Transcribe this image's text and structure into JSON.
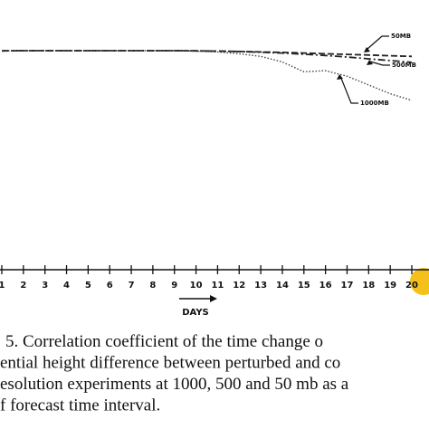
{
  "chart_data": {
    "type": "line",
    "x": [
      1,
      2,
      3,
      4,
      5,
      6,
      7,
      8,
      9,
      10,
      11,
      12,
      13,
      14,
      15,
      16,
      17,
      18,
      19,
      20
    ],
    "series": [
      {
        "name": "50MB",
        "color": "#222222",
        "style": "dashed",
        "values": [
          0.995,
          0.996,
          0.996,
          0.996,
          0.996,
          0.996,
          0.996,
          0.996,
          0.996,
          0.995,
          0.994,
          0.992,
          0.99,
          0.988,
          0.985,
          0.982,
          0.979,
          0.976,
          0.973,
          0.97
        ]
      },
      {
        "name": "500MB",
        "color": "#222222",
        "style": "dashdot",
        "values": [
          0.995,
          0.996,
          0.996,
          0.996,
          0.996,
          0.996,
          0.996,
          0.996,
          0.996,
          0.995,
          0.994,
          0.992,
          0.989,
          0.985,
          0.98,
          0.974,
          0.967,
          0.959,
          0.951,
          0.943
        ]
      },
      {
        "name": "1000MB",
        "color": "#444444",
        "style": "dotted",
        "values": [
          0.995,
          0.996,
          0.996,
          0.996,
          0.996,
          0.996,
          0.996,
          0.996,
          0.996,
          0.994,
          0.99,
          0.982,
          0.97,
          0.945,
          0.9,
          0.905,
          0.88,
          0.84,
          0.8,
          0.77
        ]
      }
    ],
    "xlim": [
      1,
      20
    ],
    "xticks": [
      1,
      2,
      3,
      4,
      5,
      6,
      7,
      8,
      9,
      10,
      11,
      12,
      13,
      14,
      15,
      16,
      17,
      18,
      19,
      20
    ],
    "ylim": [
      0,
      1
    ],
    "xlabel": "DAYS",
    "caption": [
      "5.  Correlation coefficient of the time change o",
      "ential height difference between perturbed and co",
      "esolution experiments at 1000, 500 and 50 mb as a",
      "f forecast time interval."
    ]
  }
}
